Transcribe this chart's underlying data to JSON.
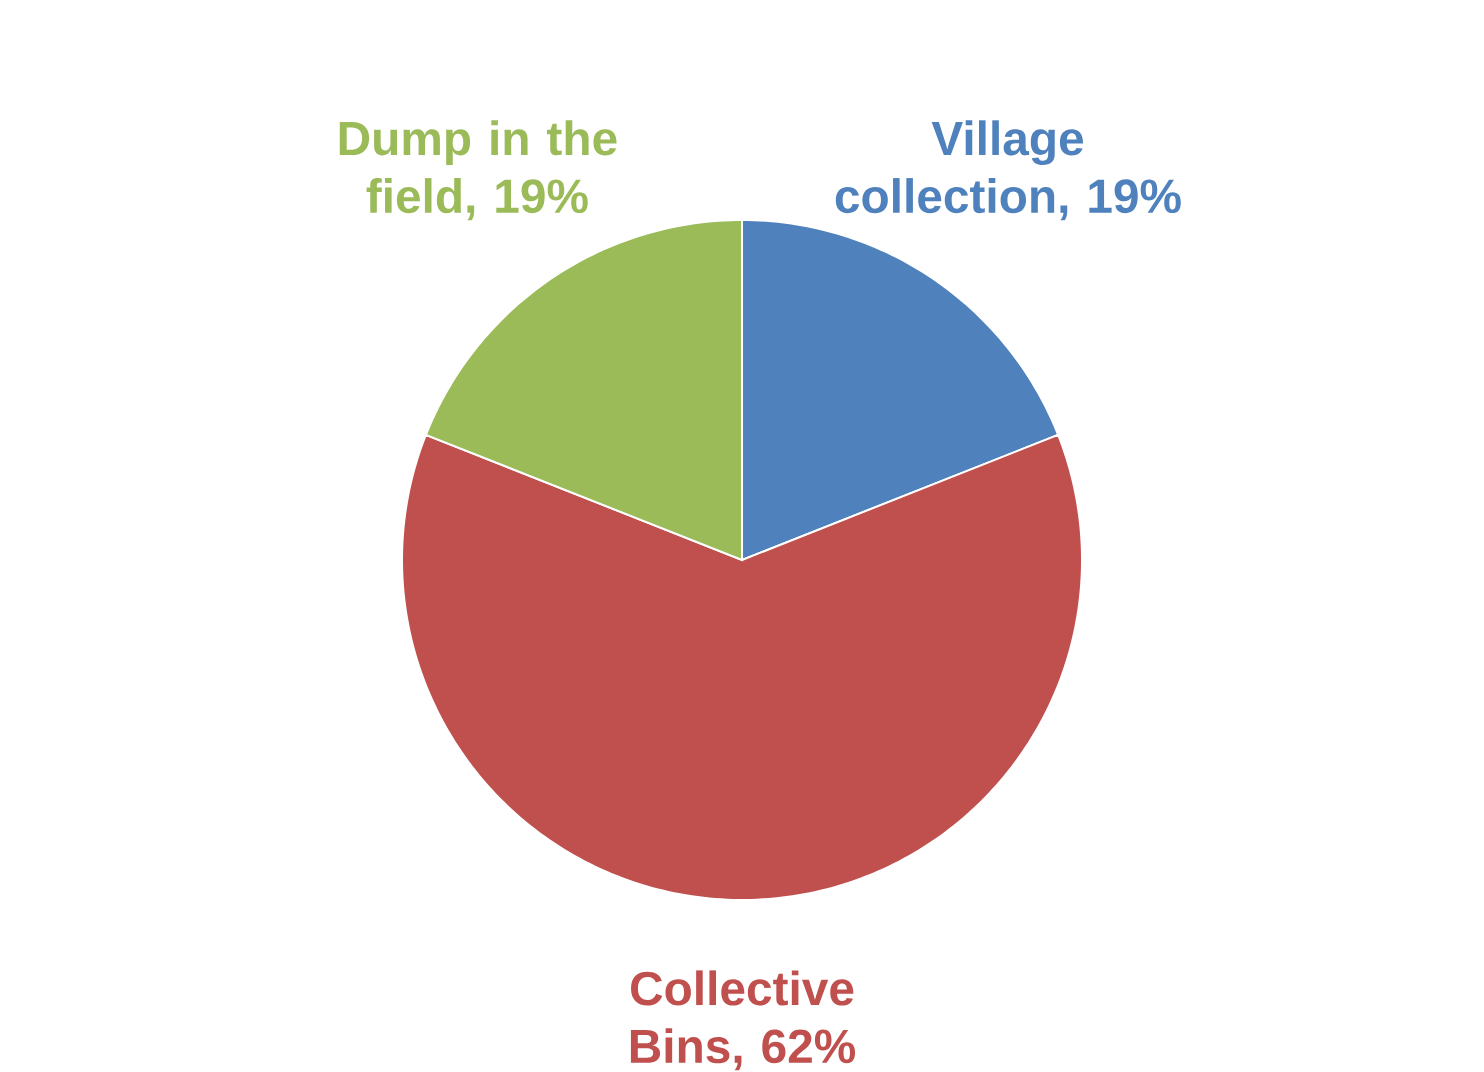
{
  "chart_data": {
    "type": "pie",
    "categories": [
      "Village collection, 19%",
      "Collective Bins, 62%",
      "Dump in the field, 19%"
    ],
    "values": [
      19,
      62,
      19
    ],
    "colors": [
      "#4f81bd",
      "#c0504d",
      "#9bbb59"
    ]
  }
}
